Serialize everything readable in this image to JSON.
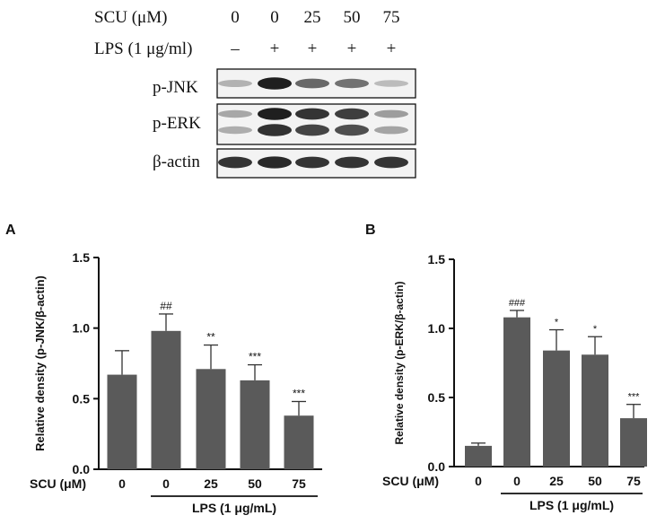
{
  "blot": {
    "scu_label": "SCU (μM)",
    "lps_label": "LPS (1 μg/ml)",
    "scu_values": [
      "0",
      "0",
      "25",
      "50",
      "75"
    ],
    "lps_values": [
      "–",
      "+",
      "+",
      "+",
      "+"
    ],
    "rows": [
      {
        "label": "p-JNK",
        "intensity": [
          0.25,
          0.95,
          0.6,
          0.55,
          0.2
        ]
      },
      {
        "label": "p-ERK",
        "intensity": [
          0.3,
          0.95,
          0.85,
          0.8,
          0.35
        ]
      },
      {
        "label": "β-actin",
        "intensity": [
          0.85,
          0.9,
          0.85,
          0.85,
          0.85
        ]
      }
    ]
  },
  "chart_data": [
    {
      "panel": "A",
      "type": "bar",
      "ylabel": "Relative density (p-JNK/β-actin)",
      "ylim": [
        0,
        1.5
      ],
      "yticks": [
        "0.0",
        "0.5",
        "1.0",
        "1.5"
      ],
      "xrow_label": "SCU (μM)",
      "categories": [
        "0",
        "0",
        "25",
        "50",
        "75"
      ],
      "values": [
        0.67,
        0.98,
        0.71,
        0.63,
        0.38
      ],
      "errors": [
        0.17,
        0.12,
        0.17,
        0.11,
        0.1
      ],
      "annotations": [
        "",
        "##",
        "**",
        "***",
        "***"
      ],
      "group_label": "LPS (1 μg/mL)",
      "bar_color": "#5a5a5a"
    },
    {
      "panel": "B",
      "type": "bar",
      "ylabel": "Relative density (p-ERK/β-actin)",
      "ylim": [
        0,
        1.5
      ],
      "yticks": [
        "0.0",
        "0.5",
        "1.0",
        "1.5"
      ],
      "xrow_label": "SCU (μM)",
      "categories": [
        "0",
        "0",
        "25",
        "50",
        "75"
      ],
      "values": [
        0.15,
        1.08,
        0.84,
        0.81,
        0.35
      ],
      "errors": [
        0.02,
        0.05,
        0.15,
        0.13,
        0.1
      ],
      "annotations": [
        "",
        "###",
        "*",
        "*",
        "***"
      ],
      "group_label": "LPS (1 μg/mL)",
      "bar_color": "#5a5a5a"
    }
  ]
}
